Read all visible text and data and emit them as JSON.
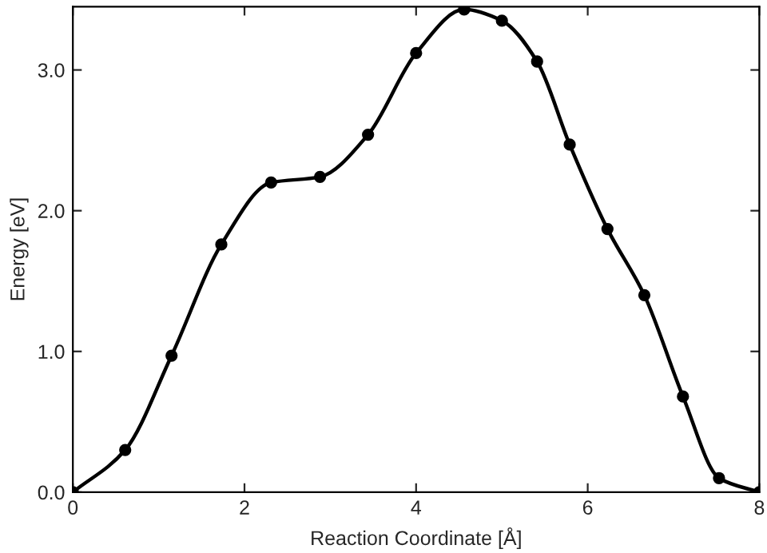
{
  "chart_data": {
    "type": "line",
    "xlabel": "Reaction Coordinate [Å]",
    "ylabel": "Energy [eV]",
    "x": [
      0,
      0.61,
      1.15,
      1.73,
      2.31,
      2.88,
      3.44,
      4.0,
      4.56,
      5.0,
      5.41,
      5.79,
      6.23,
      6.66,
      7.11,
      7.53,
      8.0
    ],
    "series": [
      {
        "color": "#000000",
        "values": [
          0,
          0.3,
          0.97,
          1.76,
          2.2,
          2.24,
          2.54,
          3.12,
          3.43,
          3.35,
          3.06,
          2.47,
          1.87,
          1.4,
          0.68,
          0.1,
          0.0
        ]
      }
    ],
    "xlim": [
      0,
      8
    ],
    "ylim": [
      0,
      3.45
    ],
    "xticks": [
      0,
      2,
      4,
      6,
      8
    ],
    "yticks": [
      {
        "value": 0,
        "label": "0.0"
      },
      {
        "value": 1,
        "label": "1.0"
      },
      {
        "value": 2,
        "label": "2.0"
      },
      {
        "value": 3,
        "label": "3.0"
      }
    ],
    "marker": "circle",
    "line_style": "solid",
    "grid": false,
    "legend": false
  }
}
